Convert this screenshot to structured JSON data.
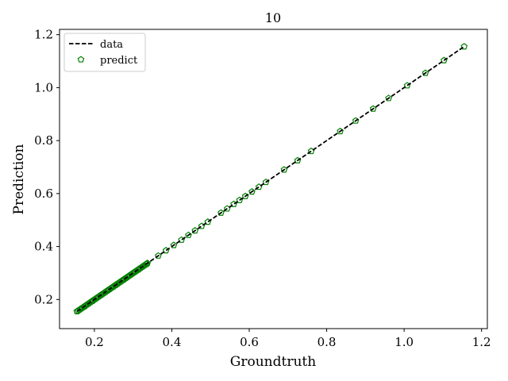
{
  "chart_data": {
    "type": "scatter",
    "title": "10",
    "xlabel": "Groundtruth",
    "ylabel": "Prediction",
    "xlim": [
      0.11,
      1.215
    ],
    "ylim": [
      0.09,
      1.22
    ],
    "xticks": [
      0.2,
      0.4,
      0.6,
      0.8,
      1.0,
      1.2
    ],
    "xtick_labels": [
      "0.2",
      "0.4",
      "0.6",
      "0.8",
      "1.0",
      "1.2"
    ],
    "yticks": [
      0.2,
      0.4,
      0.6,
      0.8,
      1.0,
      1.2
    ],
    "ytick_labels": [
      "0.2",
      "0.4",
      "0.6",
      "0.8",
      "1.0",
      "1.2"
    ],
    "grid": false,
    "legend_position": "top-left",
    "series": [
      {
        "name": "data",
        "kind": "line",
        "style": "dashed",
        "color": "#000000",
        "x": [
          0.155,
          1.155
        ],
        "y": [
          0.155,
          1.155
        ]
      },
      {
        "name": "predict",
        "kind": "scatter",
        "marker": "pentagon",
        "color": "#008000",
        "dense_range": [
          0.155,
          0.34
        ],
        "x": [
          0.155,
          0.175,
          0.195,
          0.215,
          0.235,
          0.255,
          0.275,
          0.295,
          0.315,
          0.335,
          0.365,
          0.385,
          0.405,
          0.425,
          0.443,
          0.46,
          0.477,
          0.493,
          0.527,
          0.543,
          0.56,
          0.575,
          0.59,
          0.607,
          0.625,
          0.643,
          0.69,
          0.725,
          0.76,
          0.835,
          0.875,
          0.92,
          0.96,
          1.008,
          1.055,
          1.103,
          1.155
        ],
        "y": [
          0.155,
          0.175,
          0.195,
          0.215,
          0.235,
          0.255,
          0.275,
          0.295,
          0.315,
          0.335,
          0.365,
          0.385,
          0.405,
          0.425,
          0.443,
          0.46,
          0.477,
          0.493,
          0.527,
          0.543,
          0.56,
          0.575,
          0.59,
          0.607,
          0.625,
          0.643,
          0.69,
          0.725,
          0.76,
          0.835,
          0.875,
          0.92,
          0.96,
          1.008,
          1.055,
          1.103,
          1.155
        ]
      }
    ]
  }
}
